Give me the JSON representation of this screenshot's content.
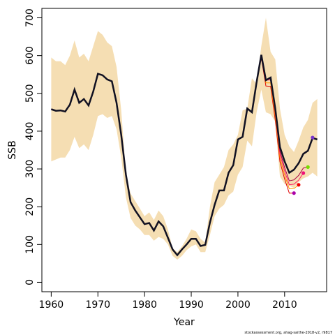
{
  "chart_data": {
    "type": "line",
    "title": "",
    "xlabel": "Year",
    "ylabel": "SSB",
    "xlim": [
      1958,
      2019
    ],
    "ylim": [
      -25,
      725
    ],
    "x_ticks": [
      1960,
      1970,
      1980,
      1990,
      2000,
      2010
    ],
    "y_ticks": [
      0,
      100,
      200,
      300,
      400,
      500,
      600,
      700
    ],
    "grid": false,
    "footer": "stockassessment.org, ahag-saithe-2018-v2, r9817",
    "band": {
      "color": "#f5deb3",
      "years": [
        1960,
        1961,
        1962,
        1963,
        1964,
        1965,
        1966,
        1967,
        1968,
        1969,
        1970,
        1971,
        1972,
        1973,
        1974,
        1975,
        1976,
        1977,
        1978,
        1979,
        1980,
        1981,
        1982,
        1983,
        1984,
        1985,
        1986,
        1987,
        1988,
        1989,
        1990,
        1991,
        1992,
        1993,
        1994,
        1995,
        1996,
        1997,
        1998,
        1999,
        2000,
        2001,
        2002,
        2003,
        2004,
        2005,
        2006,
        2007,
        2008,
        2009,
        2010,
        2011,
        2012,
        2013,
        2014,
        2015,
        2016,
        2017
      ],
      "upper": [
        595,
        585,
        585,
        575,
        600,
        640,
        595,
        605,
        585,
        625,
        665,
        655,
        635,
        625,
        570,
        455,
        290,
        235,
        215,
        195,
        175,
        185,
        165,
        190,
        175,
        140,
        90,
        80,
        95,
        115,
        140,
        135,
        115,
        105,
        200,
        265,
        285,
        305,
        350,
        365,
        390,
        455,
        460,
        540,
        525,
        625,
        700,
        610,
        590,
        460,
        390,
        360,
        345,
        375,
        410,
        430,
        475,
        485
      ],
      "lower": [
        320,
        325,
        330,
        330,
        350,
        385,
        355,
        365,
        350,
        390,
        440,
        445,
        435,
        440,
        405,
        330,
        225,
        170,
        150,
        140,
        125,
        125,
        110,
        120,
        115,
        100,
        70,
        60,
        70,
        85,
        95,
        100,
        80,
        80,
        125,
        175,
        195,
        205,
        230,
        240,
        285,
        305,
        375,
        360,
        450,
        510,
        450,
        445,
        425,
        280,
        260,
        255,
        250,
        265,
        275,
        280,
        290,
        280
      ]
    },
    "estimate": {
      "color": "#111122",
      "years": [
        1960,
        1961,
        1962,
        1963,
        1964,
        1965,
        1966,
        1967,
        1968,
        1969,
        1970,
        1971,
        1972,
        1973,
        1974,
        1975,
        1976,
        1977,
        1978,
        1979,
        1980,
        1981,
        1982,
        1983,
        1984,
        1985,
        1986,
        1987,
        1988,
        1989,
        1990,
        1991,
        1992,
        1993,
        1994,
        1995,
        1996,
        1997,
        1998,
        1999,
        2000,
        2001,
        2002,
        2003,
        2004,
        2005,
        2006,
        2007,
        2008,
        2009,
        2010,
        2011,
        2012,
        2013,
        2014,
        2015,
        2016,
        2017
      ],
      "values": [
        458,
        454,
        455,
        452,
        470,
        510,
        475,
        485,
        468,
        505,
        552,
        548,
        537,
        532,
        475,
        390,
        285,
        212,
        190,
        172,
        154,
        157,
        137,
        161,
        148,
        118,
        87,
        72,
        87,
        100,
        115,
        115,
        96,
        99,
        158,
        205,
        243,
        243,
        290,
        310,
        378,
        385,
        460,
        450,
        530,
        602,
        535,
        542,
        460,
        358,
        320,
        290,
        298,
        315,
        340,
        348,
        382,
        378
      ]
    },
    "retro_colors": [
      "#e00000",
      "#ff9900",
      "#ff2266",
      "#aa0044",
      "#cc00ff"
    ],
    "retro_endpoints": [
      {
        "year": 2012,
        "value": 236,
        "color": "#aa00aa"
      },
      {
        "year": 2013,
        "value": 258,
        "color": "#ee0000"
      },
      {
        "year": 2014,
        "value": 289,
        "color": "#ee1177"
      },
      {
        "year": 2015,
        "value": 305,
        "color": "#77dd00"
      },
      {
        "year": 2016,
        "value": 383,
        "color": "#7733cc"
      }
    ]
  }
}
